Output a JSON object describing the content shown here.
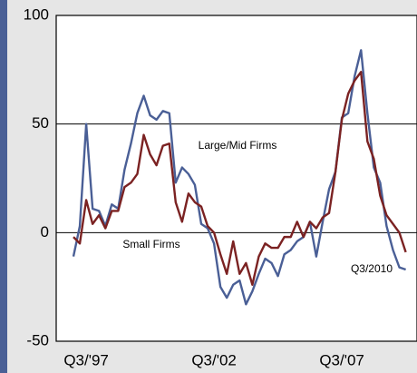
{
  "chart_data": {
    "type": "line",
    "categories": [
      null,
      null,
      "Q3/'97",
      null,
      null,
      null,
      null,
      null,
      null,
      null,
      null,
      null,
      null,
      null,
      null,
      null,
      null,
      null,
      null,
      null,
      null,
      null,
      "Q3/'02",
      null,
      null,
      null,
      null,
      null,
      null,
      null,
      null,
      null,
      null,
      null,
      null,
      null,
      null,
      null,
      null,
      null,
      null,
      null,
      "Q3/'07",
      null,
      null,
      null,
      null,
      null,
      null,
      null,
      null,
      null,
      null
    ],
    "series": [
      {
        "name": "Large/Mid Firms",
        "color": "#4a5f96",
        "values": [
          -11,
          3,
          50,
          11,
          10,
          3,
          13,
          11,
          29,
          41,
          55,
          63,
          54,
          52,
          56,
          55,
          23,
          30,
          27,
          22,
          4,
          2,
          -5,
          -25,
          -30,
          -24,
          -22,
          -33,
          -27,
          -19,
          -12,
          -14,
          -20,
          -10,
          -8,
          -4,
          -2,
          5,
          -11,
          5,
          20,
          28,
          53,
          55,
          72,
          84,
          55,
          30,
          23,
          3,
          -8,
          -16,
          -17
        ]
      },
      {
        "name": "Small Firms",
        "color": "#7b2222",
        "values": [
          -2,
          -5,
          15,
          4,
          8,
          2,
          10,
          10,
          21,
          23,
          27,
          45,
          36,
          31,
          40,
          41,
          14,
          5,
          18,
          14,
          12,
          3,
          0,
          -10,
          -19,
          -4,
          -19,
          -14,
          -24,
          -11,
          -5,
          -7,
          -7,
          -2,
          -2,
          5,
          -2,
          5,
          2,
          7,
          9,
          28,
          52,
          64,
          70,
          74,
          42,
          34,
          17,
          8,
          4,
          0,
          -9
        ]
      }
    ],
    "annotations": [
      "Q3/2010"
    ],
    "ylim": [
      -50,
      100
    ],
    "yticks": [
      -50,
      0,
      50,
      100
    ],
    "grid": true
  }
}
